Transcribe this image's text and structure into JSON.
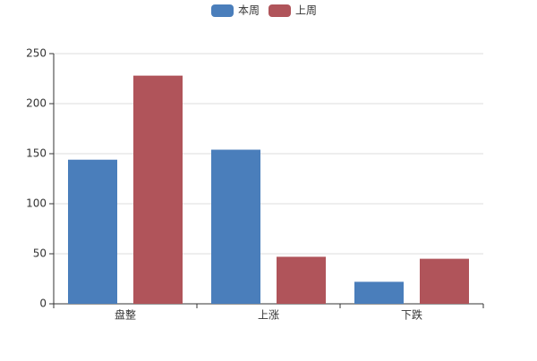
{
  "chart_data": {
    "type": "bar",
    "categories": [
      "盘整",
      "上涨",
      "下跌"
    ],
    "series": [
      {
        "name": "本周",
        "color": "#4a7ebb",
        "values": [
          144,
          154,
          22
        ]
      },
      {
        "name": "上周",
        "color": "#b0545a",
        "values": [
          228,
          47,
          45
        ]
      }
    ],
    "ylim": [
      0,
      250
    ],
    "yticks": [
      0,
      50,
      100,
      150,
      200,
      250
    ],
    "grid": true,
    "legend": "top"
  }
}
